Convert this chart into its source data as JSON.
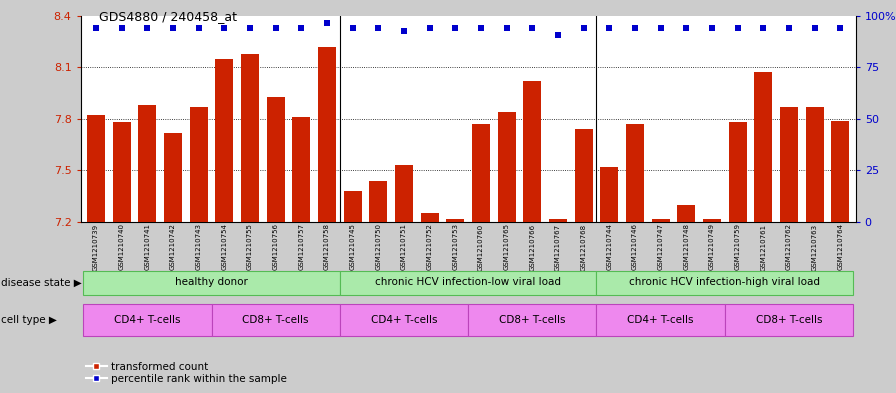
{
  "title": "GDS4880 / 240458_at",
  "samples": [
    "GSM1210739",
    "GSM1210740",
    "GSM1210741",
    "GSM1210742",
    "GSM1210743",
    "GSM1210754",
    "GSM1210755",
    "GSM1210756",
    "GSM1210757",
    "GSM1210758",
    "GSM1210745",
    "GSM1210750",
    "GSM1210751",
    "GSM1210752",
    "GSM1210753",
    "GSM1210760",
    "GSM1210765",
    "GSM1210766",
    "GSM1210767",
    "GSM1210768",
    "GSM1210744",
    "GSM1210746",
    "GSM1210747",
    "GSM1210748",
    "GSM1210749",
    "GSM1210759",
    "GSM1210761",
    "GSM1210762",
    "GSM1210763",
    "GSM1210764"
  ],
  "bar_values": [
    7.82,
    7.78,
    7.88,
    7.72,
    7.87,
    8.15,
    8.18,
    7.93,
    7.81,
    8.22,
    7.38,
    7.44,
    7.53,
    7.25,
    7.22,
    7.77,
    7.84,
    8.02,
    7.22,
    7.74,
    7.52,
    7.77,
    7.22,
    7.3,
    7.22,
    7.78,
    8.07,
    7.87,
    7.87,
    7.79
  ],
  "percentile_values": [
    8.33,
    8.33,
    8.33,
    8.33,
    8.33,
    8.33,
    8.33,
    8.33,
    8.33,
    8.36,
    8.33,
    8.33,
    8.31,
    8.33,
    8.33,
    8.33,
    8.33,
    8.33,
    8.29,
    8.33,
    8.33,
    8.33,
    8.33,
    8.33,
    8.33,
    8.33,
    8.33,
    8.33,
    8.33,
    8.33
  ],
  "ylim": [
    7.2,
    8.4
  ],
  "yticks": [
    7.2,
    7.5,
    7.8,
    8.1,
    8.4
  ],
  "ytick_labels": [
    "7.2",
    "7.5",
    "7.8",
    "8.1",
    "8.4"
  ],
  "right_yticks": [
    0,
    25,
    50,
    75,
    100
  ],
  "right_ytick_labels": [
    "0",
    "25",
    "50",
    "75",
    "100%"
  ],
  "bar_color": "#CC2200",
  "dot_color": "#0000CC",
  "background_color": "#CCCCCC",
  "plot_bg": "#FFFFFF",
  "grid_lines": [
    7.5,
    7.8,
    8.1
  ],
  "group_separators": [
    9.5,
    19.5
  ],
  "disease_groups": [
    {
      "label": "healthy donor",
      "start": 0,
      "end": 9
    },
    {
      "label": "chronic HCV infection-low viral load",
      "start": 10,
      "end": 19
    },
    {
      "label": "chronic HCV infection-high viral load",
      "start": 20,
      "end": 29
    }
  ],
  "cell_groups": [
    {
      "label": "CD4+ T-cells",
      "start": 0,
      "end": 4
    },
    {
      "label": "CD8+ T-cells",
      "start": 5,
      "end": 9
    },
    {
      "label": "CD4+ T-cells",
      "start": 10,
      "end": 14
    },
    {
      "label": "CD8+ T-cells",
      "start": 15,
      "end": 19
    },
    {
      "label": "CD4+ T-cells",
      "start": 20,
      "end": 24
    },
    {
      "label": "CD8+ T-cells",
      "start": 25,
      "end": 29
    }
  ],
  "disease_state_label": "disease state",
  "cell_type_label": "cell type",
  "green_color": "#AAEAAA",
  "green_edge": "#55BB55",
  "purple_color": "#EE88EE",
  "purple_edge": "#BB44BB",
  "legend_red_label": "transformed count",
  "legend_blue_label": "percentile rank within the sample"
}
